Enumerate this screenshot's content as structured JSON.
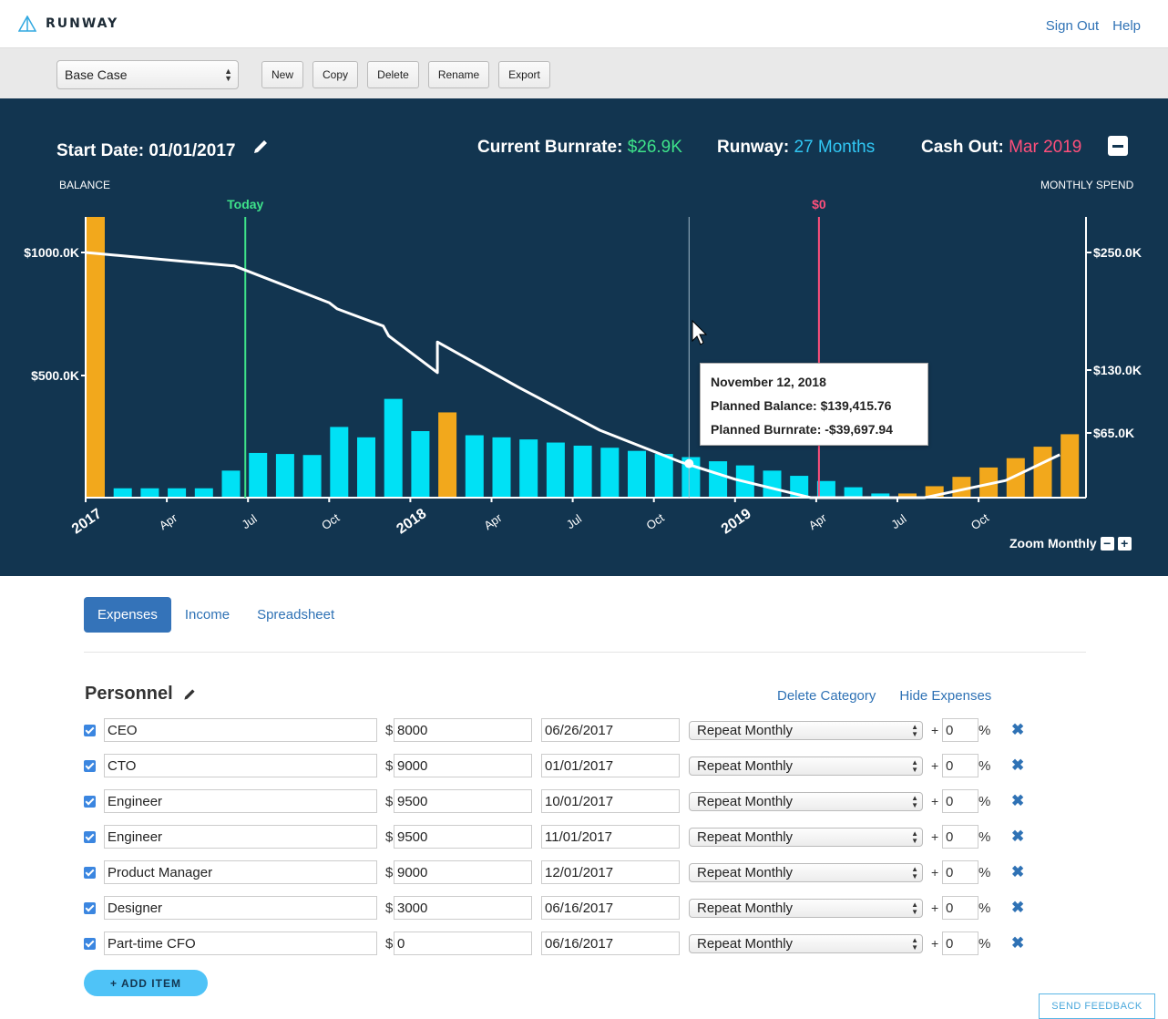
{
  "app": {
    "name": "RUNWAY"
  },
  "nav": {
    "sign_out": "Sign Out",
    "help": "Help"
  },
  "toolbar": {
    "scenario": "Base Case",
    "buttons": {
      "new": "New",
      "copy": "Copy",
      "delete": "Delete",
      "rename": "Rename",
      "export": "Export"
    }
  },
  "summary": {
    "start_date_label": "Start Date:",
    "start_date": "01/01/2017",
    "burnrate_label": "Current Burnrate:",
    "burnrate": "$26.9K",
    "runway_label": "Runway:",
    "runway": "27 Months",
    "cashout_label": "Cash Out:",
    "cashout": "Mar 2019"
  },
  "chart_data": {
    "type": "bar",
    "left_axis_title": "BALANCE",
    "right_axis_title": "MONTHLY SPEND",
    "left_ticks": [
      "$1000.0K",
      "$500.0K"
    ],
    "right_ticks": [
      "$250.0K",
      "$130.0K",
      "$65.0K"
    ],
    "x_ticks": [
      "2017",
      "Apr",
      "Jul",
      "Oct",
      "2018",
      "Apr",
      "Jul",
      "Oct",
      "2019",
      "Apr",
      "Jul",
      "Oct"
    ],
    "markers": {
      "today": "Today",
      "zero": "$0"
    },
    "colors": {
      "bar": "#00e1f5",
      "highlight": "#f2a81c",
      "today": "#3ee38a",
      "zero": "#ff4f7b",
      "line": "#ffffff"
    },
    "monthly_spend": [
      {
        "m": "2017-01",
        "v": 270,
        "h": true
      },
      {
        "m": "2017-02",
        "v": 9,
        "h": false
      },
      {
        "m": "2017-03",
        "v": 9,
        "h": false
      },
      {
        "m": "2017-04",
        "v": 9,
        "h": false
      },
      {
        "m": "2017-05",
        "v": 9,
        "h": false
      },
      {
        "m": "2017-06",
        "v": 26,
        "h": false
      },
      {
        "m": "2017-07",
        "v": 43,
        "h": false
      },
      {
        "m": "2017-08",
        "v": 42,
        "h": false
      },
      {
        "m": "2017-09",
        "v": 41,
        "h": false
      },
      {
        "m": "2017-10",
        "v": 68,
        "h": false
      },
      {
        "m": "2017-11",
        "v": 58,
        "h": false
      },
      {
        "m": "2017-12",
        "v": 95,
        "h": false
      },
      {
        "m": "2018-01",
        "v": 64,
        "h": false
      },
      {
        "m": "2018-02",
        "v": 82,
        "h": true
      },
      {
        "m": "2018-03",
        "v": 60,
        "h": false
      },
      {
        "m": "2018-04",
        "v": 58,
        "h": false
      },
      {
        "m": "2018-05",
        "v": 56,
        "h": false
      },
      {
        "m": "2018-06",
        "v": 53,
        "h": false
      },
      {
        "m": "2018-07",
        "v": 50,
        "h": false
      },
      {
        "m": "2018-08",
        "v": 48,
        "h": false
      },
      {
        "m": "2018-09",
        "v": 45,
        "h": false
      },
      {
        "m": "2018-10",
        "v": 42,
        "h": false
      },
      {
        "m": "2018-11",
        "v": 39,
        "h": false
      },
      {
        "m": "2018-12",
        "v": 35,
        "h": false
      },
      {
        "m": "2019-01",
        "v": 31,
        "h": false
      },
      {
        "m": "2019-02",
        "v": 26,
        "h": false
      },
      {
        "m": "2019-03",
        "v": 21,
        "h": false
      },
      {
        "m": "2019-04",
        "v": 16,
        "h": false
      },
      {
        "m": "2019-05",
        "v": 10,
        "h": false
      },
      {
        "m": "2019-06",
        "v": 4,
        "h": false
      },
      {
        "m": "2019-07",
        "v": 4,
        "h": true
      },
      {
        "m": "2019-08",
        "v": 11,
        "h": true
      },
      {
        "m": "2019-09",
        "v": 20,
        "h": true
      },
      {
        "m": "2019-10",
        "v": 29,
        "h": true
      },
      {
        "m": "2019-11",
        "v": 38,
        "h": true
      },
      {
        "m": "2019-12",
        "v": 49,
        "h": true
      },
      {
        "m": "2020-01",
        "v": 61,
        "h": true
      }
    ],
    "balance_k": [
      [
        0,
        1000
      ],
      [
        5.5,
        945
      ],
      [
        9,
        795
      ],
      [
        9.3,
        770
      ],
      [
        11,
        700
      ],
      [
        11.2,
        660
      ],
      [
        13,
        510
      ],
      [
        13,
        635
      ],
      [
        16,
        450
      ],
      [
        19,
        275
      ],
      [
        22,
        145
      ],
      [
        24,
        75
      ],
      [
        26.8,
        0
      ],
      [
        31,
        0
      ],
      [
        34,
        70
      ],
      [
        36,
        175
      ]
    ]
  },
  "tooltip": {
    "date": "November 12, 2018",
    "balance": "Planned Balance: $139,415.76",
    "burnrate": "Planned Burnrate: -$39,697.94"
  },
  "zoom": {
    "label": "Zoom Monthly",
    "minus": "−",
    "plus": "+"
  },
  "tabs": [
    "Expenses",
    "Income",
    "Spreadsheet"
  ],
  "category": {
    "title": "Personnel",
    "delete_label": "Delete Category",
    "hide_label": "Hide Expenses"
  },
  "expenses": [
    {
      "name": "CEO",
      "amount": "8000",
      "date": "06/26/2017",
      "repeat": "Repeat Monthly",
      "growth": "0"
    },
    {
      "name": "CTO",
      "amount": "9000",
      "date": "01/01/2017",
      "repeat": "Repeat Monthly",
      "growth": "0"
    },
    {
      "name": "Engineer",
      "amount": "9500",
      "date": "10/01/2017",
      "repeat": "Repeat Monthly",
      "growth": "0"
    },
    {
      "name": "Engineer",
      "amount": "9500",
      "date": "11/01/2017",
      "repeat": "Repeat Monthly",
      "growth": "0"
    },
    {
      "name": "Product Manager",
      "amount": "9000",
      "date": "12/01/2017",
      "repeat": "Repeat Monthly",
      "growth": "0"
    },
    {
      "name": "Designer",
      "amount": "3000",
      "date": "06/16/2017",
      "repeat": "Repeat Monthly",
      "growth": "0"
    },
    {
      "name": "Part-time CFO",
      "amount": "0",
      "date": "06/16/2017",
      "repeat": "Repeat Monthly",
      "growth": "0"
    }
  ],
  "row_symbols": {
    "dollar": "$",
    "plus": "+",
    "percent": "%",
    "delete": "✖"
  },
  "add_item": "+ ADD ITEM",
  "feedback": "SEND FEEDBACK"
}
